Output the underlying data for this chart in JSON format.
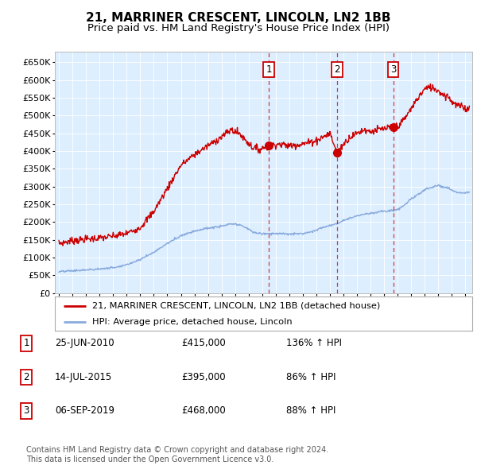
{
  "title": "21, MARRINER CRESCENT, LINCOLN, LN2 1BB",
  "subtitle": "Price paid vs. HM Land Registry's House Price Index (HPI)",
  "title_fontsize": 11,
  "subtitle_fontsize": 9.5,
  "ylim": [
    0,
    680000
  ],
  "yticks": [
    0,
    50000,
    100000,
    150000,
    200000,
    250000,
    300000,
    350000,
    400000,
    450000,
    500000,
    550000,
    600000,
    650000
  ],
  "ytick_labels": [
    "£0",
    "£50K",
    "£100K",
    "£150K",
    "£200K",
    "£250K",
    "£300K",
    "£350K",
    "£400K",
    "£450K",
    "£500K",
    "£550K",
    "£600K",
    "£650K"
  ],
  "plot_bg_color": "#ddeeff",
  "red_line_color": "#cc0000",
  "blue_line_color": "#88aadd",
  "sale_year_floats": [
    2010.48,
    2015.53,
    2019.68
  ],
  "sale_prices": [
    415000,
    395000,
    468000
  ],
  "sale_labels": [
    "1",
    "2",
    "3"
  ],
  "legend_label_red": "21, MARRINER CRESCENT, LINCOLN, LN2 1BB (detached house)",
  "legend_label_blue": "HPI: Average price, detached house, Lincoln",
  "table_entries": [
    {
      "num": "1",
      "date": "25-JUN-2010",
      "price": "£415,000",
      "hpi": "136% ↑ HPI"
    },
    {
      "num": "2",
      "date": "14-JUL-2015",
      "price": "£395,000",
      "hpi": "86% ↑ HPI"
    },
    {
      "num": "3",
      "date": "06-SEP-2019",
      "price": "£468,000",
      "hpi": "88% ↑ HPI"
    }
  ],
  "footer": "Contains HM Land Registry data © Crown copyright and database right 2024.\nThis data is licensed under the Open Government Licence v3.0.",
  "xstart": 1994.7,
  "xend": 2025.5,
  "red_waypoints": [
    [
      1995.0,
      140000
    ],
    [
      1996.0,
      148000
    ],
    [
      1997.0,
      152000
    ],
    [
      1998.0,
      155000
    ],
    [
      1999.0,
      160000
    ],
    [
      2000.0,
      168000
    ],
    [
      2001.0,
      185000
    ],
    [
      2002.0,
      230000
    ],
    [
      2003.0,
      295000
    ],
    [
      2004.0,
      360000
    ],
    [
      2005.0,
      390000
    ],
    [
      2006.0,
      415000
    ],
    [
      2007.0,
      440000
    ],
    [
      2007.7,
      460000
    ],
    [
      2008.3,
      450000
    ],
    [
      2008.8,
      430000
    ],
    [
      2009.3,
      410000
    ],
    [
      2009.8,
      405000
    ],
    [
      2010.0,
      408000
    ],
    [
      2010.48,
      415000
    ],
    [
      2011.0,
      420000
    ],
    [
      2011.5,
      418000
    ],
    [
      2012.0,
      415000
    ],
    [
      2012.5,
      418000
    ],
    [
      2013.0,
      420000
    ],
    [
      2013.5,
      425000
    ],
    [
      2014.0,
      430000
    ],
    [
      2014.5,
      440000
    ],
    [
      2015.0,
      450000
    ],
    [
      2015.53,
      395000
    ],
    [
      2016.0,
      420000
    ],
    [
      2016.5,
      440000
    ],
    [
      2017.0,
      450000
    ],
    [
      2017.5,
      460000
    ],
    [
      2018.0,
      455000
    ],
    [
      2018.5,
      460000
    ],
    [
      2019.0,
      462000
    ],
    [
      2019.68,
      468000
    ],
    [
      2020.0,
      470000
    ],
    [
      2020.5,
      490000
    ],
    [
      2021.0,
      520000
    ],
    [
      2021.5,
      550000
    ],
    [
      2022.0,
      575000
    ],
    [
      2022.5,
      580000
    ],
    [
      2023.0,
      570000
    ],
    [
      2023.3,
      560000
    ],
    [
      2023.7,
      555000
    ],
    [
      2024.0,
      540000
    ],
    [
      2024.3,
      530000
    ],
    [
      2024.7,
      525000
    ],
    [
      2025.0,
      520000
    ],
    [
      2025.3,
      520000
    ]
  ],
  "blue_waypoints": [
    [
      1995.0,
      60000
    ],
    [
      1996.0,
      63000
    ],
    [
      1997.0,
      65000
    ],
    [
      1998.0,
      68000
    ],
    [
      1999.0,
      72000
    ],
    [
      2000.0,
      80000
    ],
    [
      2001.0,
      95000
    ],
    [
      2002.0,
      115000
    ],
    [
      2003.0,
      140000
    ],
    [
      2004.0,
      162000
    ],
    [
      2005.0,
      175000
    ],
    [
      2006.0,
      183000
    ],
    [
      2007.0,
      188000
    ],
    [
      2007.7,
      195000
    ],
    [
      2008.3,
      192000
    ],
    [
      2008.8,
      185000
    ],
    [
      2009.3,
      172000
    ],
    [
      2009.8,
      168000
    ],
    [
      2010.0,
      167000
    ],
    [
      2010.5,
      168000
    ],
    [
      2011.0,
      168000
    ],
    [
      2011.5,
      167000
    ],
    [
      2012.0,
      166000
    ],
    [
      2012.5,
      167000
    ],
    [
      2013.0,
      168000
    ],
    [
      2013.5,
      172000
    ],
    [
      2014.0,
      178000
    ],
    [
      2014.5,
      185000
    ],
    [
      2015.0,
      190000
    ],
    [
      2015.5,
      196000
    ],
    [
      2016.0,
      205000
    ],
    [
      2016.5,
      212000
    ],
    [
      2017.0,
      218000
    ],
    [
      2017.5,
      222000
    ],
    [
      2018.0,
      225000
    ],
    [
      2018.5,
      228000
    ],
    [
      2019.0,
      230000
    ],
    [
      2019.5,
      232000
    ],
    [
      2020.0,
      235000
    ],
    [
      2020.5,
      248000
    ],
    [
      2021.0,
      265000
    ],
    [
      2021.5,
      278000
    ],
    [
      2022.0,
      290000
    ],
    [
      2022.5,
      298000
    ],
    [
      2023.0,
      303000
    ],
    [
      2023.3,
      300000
    ],
    [
      2023.7,
      295000
    ],
    [
      2024.0,
      290000
    ],
    [
      2024.3,
      285000
    ],
    [
      2024.7,
      282000
    ],
    [
      2025.0,
      283000
    ],
    [
      2025.3,
      284000
    ]
  ]
}
